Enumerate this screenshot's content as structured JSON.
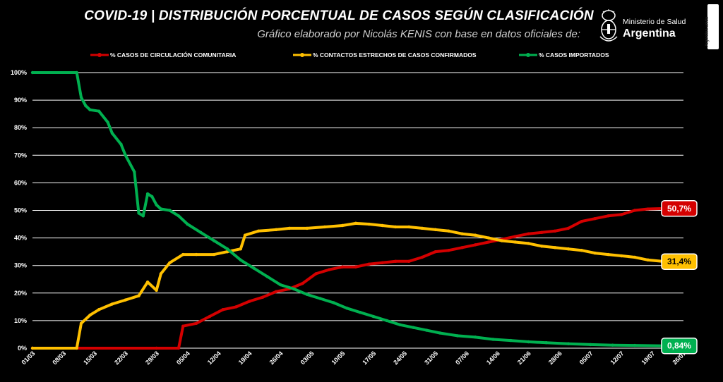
{
  "title": "COVID-19  |  DISTRIBUCIÓN PORCENTUAL DE CASOS SEGÚN CLASIFICACIÓN",
  "subtitle": "Gráfico elaborado por Nicolás KENIS con base en datos oficiales de:",
  "logo": {
    "org": "Ministerio de Salud",
    "country": "Argentina",
    "emblem": "argentina-coat-of-arms-icon"
  },
  "side_tab": "Argentina unida",
  "colors": {
    "comunitaria": "#d40000",
    "contactos": "#ffc000",
    "importados": "#00b050",
    "grid": "#ffffff"
  },
  "chart_data": {
    "type": "line",
    "title": "COVID-19  |  DISTRIBUCIÓN PORCENTUAL DE CASOS SEGÚN CLASIFICACIÓN",
    "xlabel": "",
    "ylabel": "",
    "ylim": [
      0,
      100
    ],
    "y_ticks": [
      "0%",
      "10%",
      "20%",
      "30%",
      "40%",
      "50%",
      "60%",
      "70%",
      "80%",
      "90%",
      "100%"
    ],
    "x_ticks": [
      "01/03",
      "08/03",
      "15/03",
      "22/03",
      "29/03",
      "05/04",
      "12/04",
      "19/04",
      "26/04",
      "03/05",
      "10/05",
      "17/05",
      "24/05",
      "31/05",
      "07/06",
      "14/06",
      "21/06",
      "28/06",
      "05/07",
      "12/07",
      "19/07",
      "26/07"
    ],
    "legend_position": "top",
    "grid": true,
    "series": [
      {
        "name": "% CASOS DE CIRCULACIÓN COMUNITARIA",
        "color": "#d40000",
        "end_label": "50,7%",
        "points": [
          [
            "01/03",
            0
          ],
          [
            "29/03",
            0
          ],
          [
            "03/04",
            0
          ],
          [
            "04/04",
            8
          ],
          [
            "07/04",
            9
          ],
          [
            "10/04",
            11.5
          ],
          [
            "13/04",
            14
          ],
          [
            "16/04",
            15
          ],
          [
            "19/04",
            17
          ],
          [
            "22/04",
            18.5
          ],
          [
            "25/04",
            20.5
          ],
          [
            "28/04",
            21.5
          ],
          [
            "01/05",
            23.5
          ],
          [
            "04/05",
            27
          ],
          [
            "07/05",
            28.5
          ],
          [
            "10/05",
            29.5
          ],
          [
            "13/05",
            29.5
          ],
          [
            "16/05",
            30.5
          ],
          [
            "19/05",
            31
          ],
          [
            "22/05",
            31.5
          ],
          [
            "25/05",
            31.5
          ],
          [
            "28/05",
            33
          ],
          [
            "31/05",
            35
          ],
          [
            "03/06",
            35.5
          ],
          [
            "06/06",
            36.5
          ],
          [
            "09/06",
            37.5
          ],
          [
            "12/06",
            38.5
          ],
          [
            "15/06",
            39.5
          ],
          [
            "18/06",
            40.5
          ],
          [
            "21/06",
            41.5
          ],
          [
            "24/06",
            42
          ],
          [
            "27/06",
            42.5
          ],
          [
            "30/06",
            43.5
          ],
          [
            "03/07",
            46
          ],
          [
            "06/07",
            47
          ],
          [
            "09/07",
            48
          ],
          [
            "12/07",
            48.5
          ],
          [
            "15/07",
            50
          ],
          [
            "18/07",
            50.5
          ],
          [
            "22/07",
            50.7
          ]
        ]
      },
      {
        "name": "% CONTACTOS ESTRECHOS DE CASOS CONFIRMADOS",
        "color": "#ffc000",
        "end_label": "31,4%",
        "points": [
          [
            "01/03",
            0
          ],
          [
            "11/03",
            0
          ],
          [
            "12/03",
            9
          ],
          [
            "14/03",
            12
          ],
          [
            "16/03",
            14
          ],
          [
            "19/03",
            16
          ],
          [
            "22/03",
            17.5
          ],
          [
            "25/03",
            19
          ],
          [
            "27/03",
            24
          ],
          [
            "29/03",
            21
          ],
          [
            "30/03",
            27
          ],
          [
            "01/04",
            31
          ],
          [
            "04/04",
            34
          ],
          [
            "07/04",
            34
          ],
          [
            "11/04",
            34
          ],
          [
            "14/04",
            35
          ],
          [
            "17/04",
            36
          ],
          [
            "18/04",
            41
          ],
          [
            "21/04",
            42.5
          ],
          [
            "25/04",
            43
          ],
          [
            "28/04",
            43.5
          ],
          [
            "02/05",
            43.5
          ],
          [
            "06/05",
            44
          ],
          [
            "10/05",
            44.5
          ],
          [
            "13/05",
            45.3
          ],
          [
            "16/05",
            45
          ],
          [
            "19/05",
            44.5
          ],
          [
            "22/05",
            44
          ],
          [
            "25/05",
            44
          ],
          [
            "28/05",
            43.5
          ],
          [
            "31/05",
            43
          ],
          [
            "03/06",
            42.5
          ],
          [
            "06/06",
            41.5
          ],
          [
            "09/06",
            41
          ],
          [
            "12/06",
            40
          ],
          [
            "15/06",
            39
          ],
          [
            "18/06",
            38.5
          ],
          [
            "21/06",
            38
          ],
          [
            "24/06",
            37
          ],
          [
            "27/06",
            36.5
          ],
          [
            "30/06",
            36
          ],
          [
            "03/07",
            35.5
          ],
          [
            "06/07",
            34.5
          ],
          [
            "09/07",
            34
          ],
          [
            "12/07",
            33.5
          ],
          [
            "15/07",
            33
          ],
          [
            "18/07",
            32
          ],
          [
            "22/07",
            31.4
          ]
        ]
      },
      {
        "name": "% CASOS IMPORTADOS",
        "color": "#00b050",
        "end_label": "0,84%",
        "points": [
          [
            "01/03",
            100
          ],
          [
            "11/03",
            100
          ],
          [
            "12/03",
            91
          ],
          [
            "13/03",
            88
          ],
          [
            "14/03",
            86.5
          ],
          [
            "16/03",
            86
          ],
          [
            "18/03",
            82
          ],
          [
            "19/03",
            78
          ],
          [
            "21/03",
            74
          ],
          [
            "22/03",
            70
          ],
          [
            "24/03",
            64
          ],
          [
            "25/03",
            49
          ],
          [
            "26/03",
            48
          ],
          [
            "27/03",
            56
          ],
          [
            "28/03",
            55
          ],
          [
            "29/03",
            52
          ],
          [
            "30/03",
            50.5
          ],
          [
            "01/04",
            50
          ],
          [
            "03/04",
            48
          ],
          [
            "05/04",
            45
          ],
          [
            "08/04",
            42
          ],
          [
            "11/04",
            39
          ],
          [
            "14/04",
            36
          ],
          [
            "17/04",
            32
          ],
          [
            "20/04",
            29
          ],
          [
            "23/04",
            26
          ],
          [
            "26/04",
            23
          ],
          [
            "29/04",
            21.5
          ],
          [
            "02/05",
            19.5
          ],
          [
            "05/05",
            18
          ],
          [
            "08/05",
            16.5
          ],
          [
            "11/05",
            14.5
          ],
          [
            "14/05",
            13
          ],
          [
            "17/05",
            11.5
          ],
          [
            "20/05",
            10
          ],
          [
            "23/05",
            8.5
          ],
          [
            "26/05",
            7.5
          ],
          [
            "29/05",
            6.5
          ],
          [
            "01/06",
            5.5
          ],
          [
            "05/06",
            4.5
          ],
          [
            "09/06",
            4
          ],
          [
            "13/06",
            3.2
          ],
          [
            "17/06",
            2.8
          ],
          [
            "21/06",
            2.3
          ],
          [
            "25/06",
            2
          ],
          [
            "30/06",
            1.6
          ],
          [
            "05/07",
            1.3
          ],
          [
            "10/07",
            1.1
          ],
          [
            "15/07",
            1
          ],
          [
            "22/07",
            0.84
          ]
        ]
      }
    ]
  }
}
